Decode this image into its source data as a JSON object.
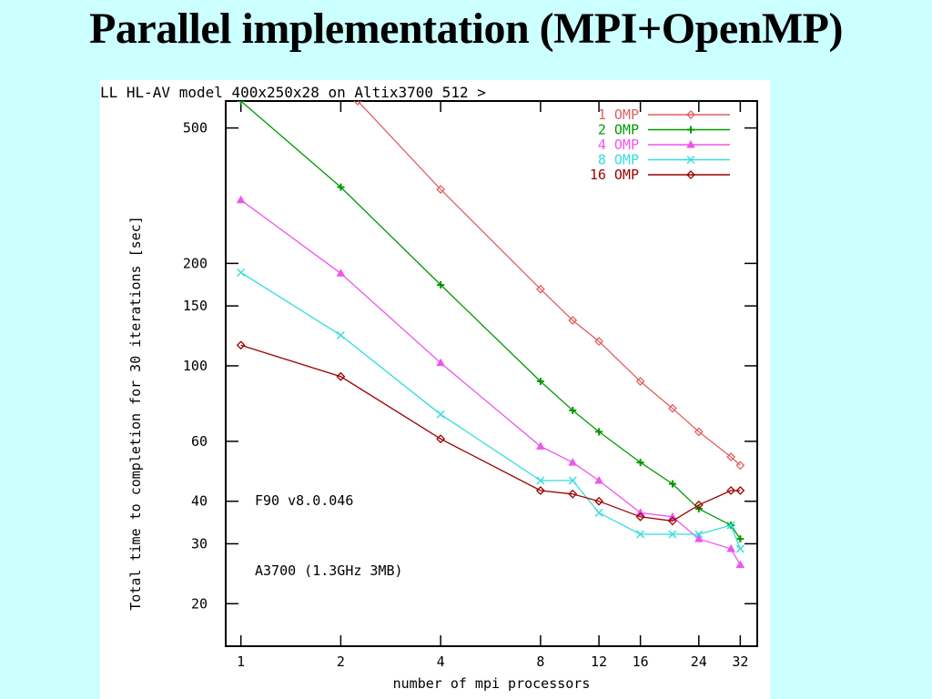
{
  "slide": {
    "title": "Parallel implementation (MPI+OpenMP)"
  },
  "chart_data": {
    "type": "line",
    "title": "LL HL-AV model 400x250x28 on Altix3700 512 >",
    "xlabel": "number of mpi processors",
    "ylabel": "Total time to completion for 30 iterations [sec]",
    "xscale": "log",
    "yscale": "log",
    "xlim": [
      0.9,
      36
    ],
    "ylim": [
      15,
      600
    ],
    "x_ticks": [
      1,
      2,
      4,
      8,
      12,
      16,
      24,
      32
    ],
    "x_tick_labels": [
      "1",
      "2",
      "4",
      "8",
      "12",
      "16",
      "24",
      "32"
    ],
    "y_ticks": [
      20,
      30,
      40,
      60,
      100,
      150,
      200,
      500
    ],
    "y_tick_labels": [
      "20",
      "30",
      "40",
      "60",
      "100",
      "150",
      "200",
      "500"
    ],
    "grid": false,
    "legend_position": "top-right",
    "annotations": [
      "F90 v8.0.046",
      "A3700 (1.3GHz 3MB)"
    ],
    "series": [
      {
        "name": "1 OMP",
        "color": "#e06060",
        "marker": "diamond",
        "x": [
          2.25,
          4,
          8,
          10,
          12,
          16,
          20,
          24,
          30,
          32
        ],
        "y": [
          600,
          330,
          168,
          136,
          118,
          90,
          75,
          64,
          54,
          51
        ]
      },
      {
        "name": "2 OMP",
        "color": "#009900",
        "marker": "plus",
        "x": [
          1,
          2,
          4,
          8,
          10,
          12,
          16,
          20,
          24,
          30,
          32
        ],
        "y": [
          600,
          335,
          173,
          90,
          74,
          64,
          52,
          45,
          38,
          34,
          31
        ]
      },
      {
        "name": "4 OMP",
        "color": "#ee55ee",
        "marker": "triangle",
        "x": [
          1,
          2,
          4,
          8,
          10,
          12,
          16,
          20,
          24,
          30,
          32
        ],
        "y": [
          307,
          187,
          102,
          58,
          52,
          46,
          37,
          36,
          31,
          29,
          26
        ]
      },
      {
        "name": "8 OMP",
        "color": "#33dddd",
        "marker": "cross",
        "x": [
          1,
          2,
          4,
          8,
          10,
          12,
          16,
          20,
          24,
          30,
          32
        ],
        "y": [
          188,
          123,
          72,
          46,
          46,
          37,
          32,
          32,
          32,
          34,
          29
        ]
      },
      {
        "name": "16 OMP",
        "color": "#990000",
        "marker": "diamond",
        "x": [
          1,
          2,
          4,
          8,
          10,
          12,
          16,
          20,
          24,
          30,
          32
        ],
        "y": [
          115,
          93,
          61,
          43,
          42,
          40,
          36,
          35,
          39,
          43,
          43
        ]
      }
    ]
  }
}
